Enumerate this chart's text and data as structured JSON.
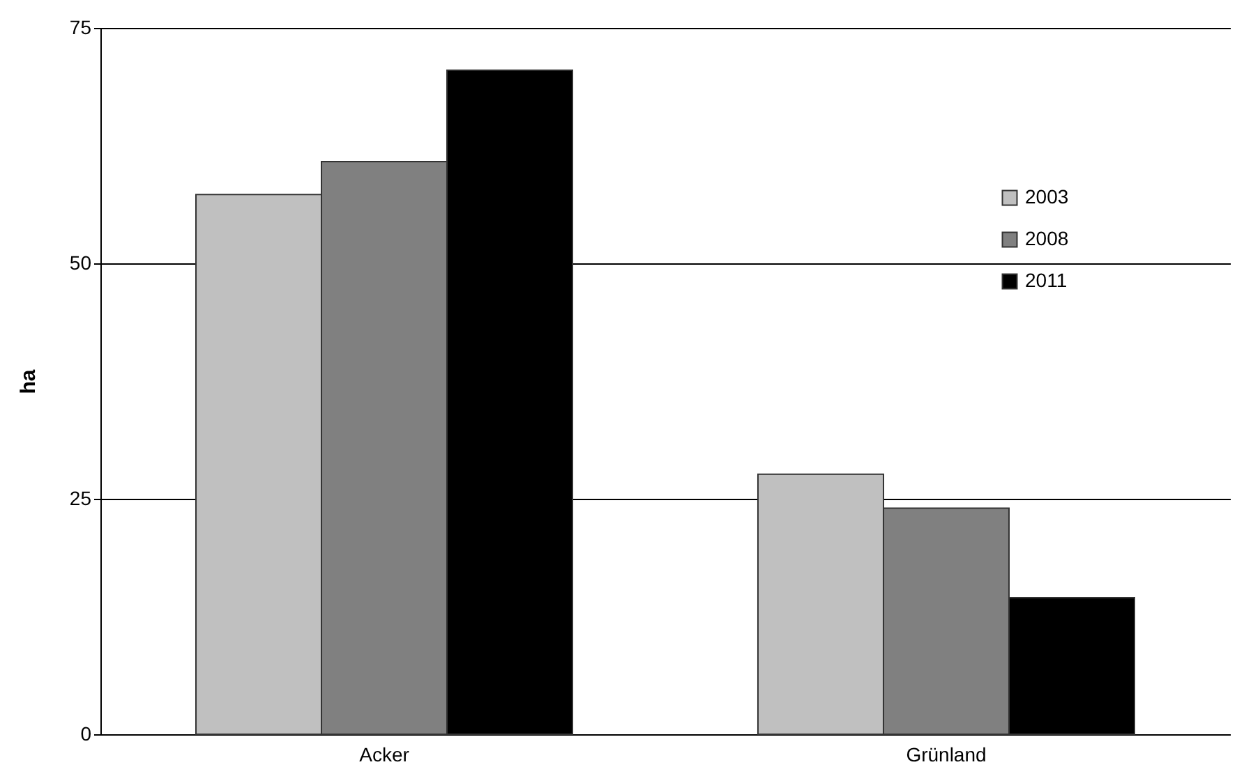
{
  "chart_data": {
    "type": "bar",
    "ylabel": "ha",
    "categories": [
      "Acker",
      "Grünland"
    ],
    "series": [
      {
        "name": "2003",
        "color": "#c0c0c0",
        "values": [
          57.3,
          27.6
        ]
      },
      {
        "name": "2008",
        "color": "#808080",
        "values": [
          60.8,
          24.0
        ]
      },
      {
        "name": "2011",
        "color": "#000000",
        "values": [
          70.5,
          14.5
        ]
      }
    ],
    "ylim": [
      0,
      75
    ],
    "yticks": [
      0,
      25,
      50,
      75
    ],
    "grid": "y",
    "legend": "top right"
  }
}
